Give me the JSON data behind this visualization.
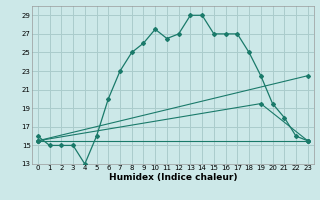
{
  "xlabel": "Humidex (Indice chaleur)",
  "bg_color": "#cce8e8",
  "grid_color": "#aacccc",
  "line_color": "#1a7a6a",
  "line1_x": [
    0,
    1,
    2,
    3,
    4,
    5,
    6,
    7,
    8,
    9,
    10,
    11,
    12,
    13,
    14,
    15,
    16,
    17,
    18,
    19,
    20,
    21,
    22,
    23
  ],
  "line1_y": [
    16,
    15,
    15,
    15,
    13,
    16,
    20,
    23,
    25,
    26,
    27.5,
    26.5,
    27,
    29,
    29,
    27,
    27,
    27,
    25,
    22.5,
    19.5,
    18,
    16,
    15.5
  ],
  "line2_x": [
    0,
    23
  ],
  "line2_y": [
    15.5,
    22.5
  ],
  "line3_x": [
    0,
    23
  ],
  "line3_y": [
    15.5,
    15.5
  ],
  "line4_x": [
    0,
    19,
    23
  ],
  "line4_y": [
    15.5,
    19.5,
    15.5
  ],
  "ylim": [
    13,
    30
  ],
  "xlim": [
    -0.5,
    23.5
  ],
  "yticks": [
    13,
    15,
    17,
    19,
    21,
    23,
    25,
    27,
    29
  ],
  "xticks": [
    0,
    1,
    2,
    3,
    4,
    5,
    6,
    7,
    8,
    9,
    10,
    11,
    12,
    13,
    14,
    15,
    16,
    17,
    18,
    19,
    20,
    21,
    22,
    23
  ],
  "title_fontsize": 7,
  "xlabel_fontsize": 6.5,
  "tick_fontsize": 5.0
}
